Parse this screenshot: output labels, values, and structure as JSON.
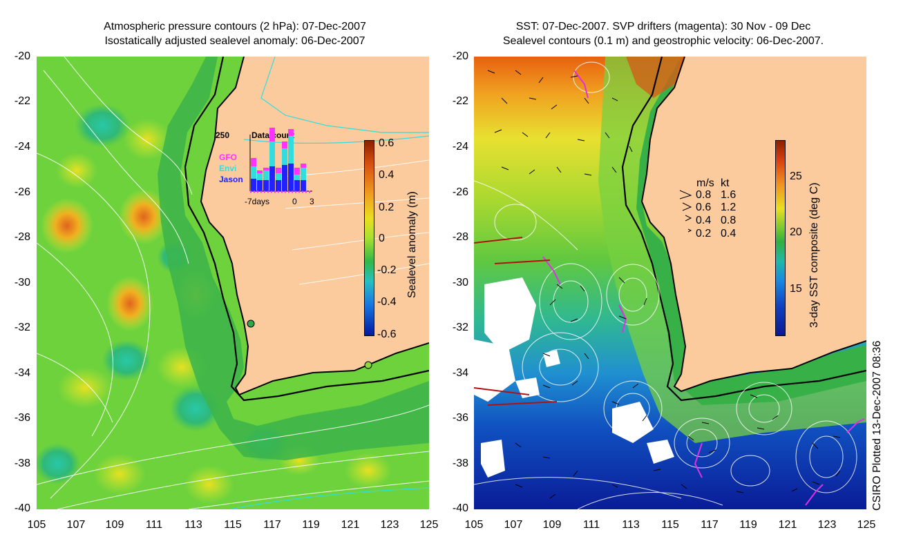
{
  "left_panel": {
    "title_line1": "Atmospheric pressure contours (2 hPa): 07-Dec-2007",
    "title_line2": "Isostatically adjusted sealevel anomaly: 06-Dec-2007",
    "colorbar": {
      "label": "Sealevel anomaly (m)",
      "ticks": [
        "0.6",
        "0.4",
        "0.2",
        "0",
        "-0.2",
        "-0.4",
        "-0.6"
      ]
    },
    "inset": {
      "count_value": "250",
      "title": "Data count",
      "legend": [
        {
          "label": "GFO",
          "color": "#ff33ff"
        },
        {
          "label": "Envi",
          "color": "#33dddd"
        },
        {
          "label": "Jason",
          "color": "#2222ff"
        }
      ],
      "xlabel_left": "-7days",
      "xlabel_mid": "0",
      "xlabel_right": "3"
    }
  },
  "right_panel": {
    "title_line1": "SST: 07-Dec-2007. SVP drifters (magenta): 30 Nov - 09 Dec",
    "title_line2": "Sealevel contours (0.1 m) and geostrophic velocity: 06-Dec-2007.",
    "colorbar": {
      "label": "3-day SST composite (deg C)",
      "ticks": [
        "25",
        "20",
        "15"
      ]
    },
    "velocity_legend": {
      "header_ms": "m/s",
      "header_kt": "kt",
      "rows": [
        {
          "ms": "0.8",
          "kt": "1.6"
        },
        {
          "ms": "0.6",
          "kt": "1.2"
        },
        {
          "ms": "0.4",
          "kt": "0.8"
        },
        {
          "ms": "0.2",
          "kt": "0.4"
        }
      ]
    }
  },
  "axes": {
    "y_ticks": [
      "-20",
      "-22",
      "-24",
      "-26",
      "-28",
      "-30",
      "-32",
      "-34",
      "-36",
      "-38",
      "-40"
    ],
    "x_ticks": [
      "105",
      "107",
      "109",
      "111",
      "113",
      "115",
      "117",
      "119",
      "121",
      "123",
      "125"
    ]
  },
  "credit": "CSIRO Plotted 13-Dec-2007 08:36",
  "colors": {
    "land": "#fbcb9e",
    "ocean_sla": "#6ed23c",
    "coastline": "#000000"
  }
}
